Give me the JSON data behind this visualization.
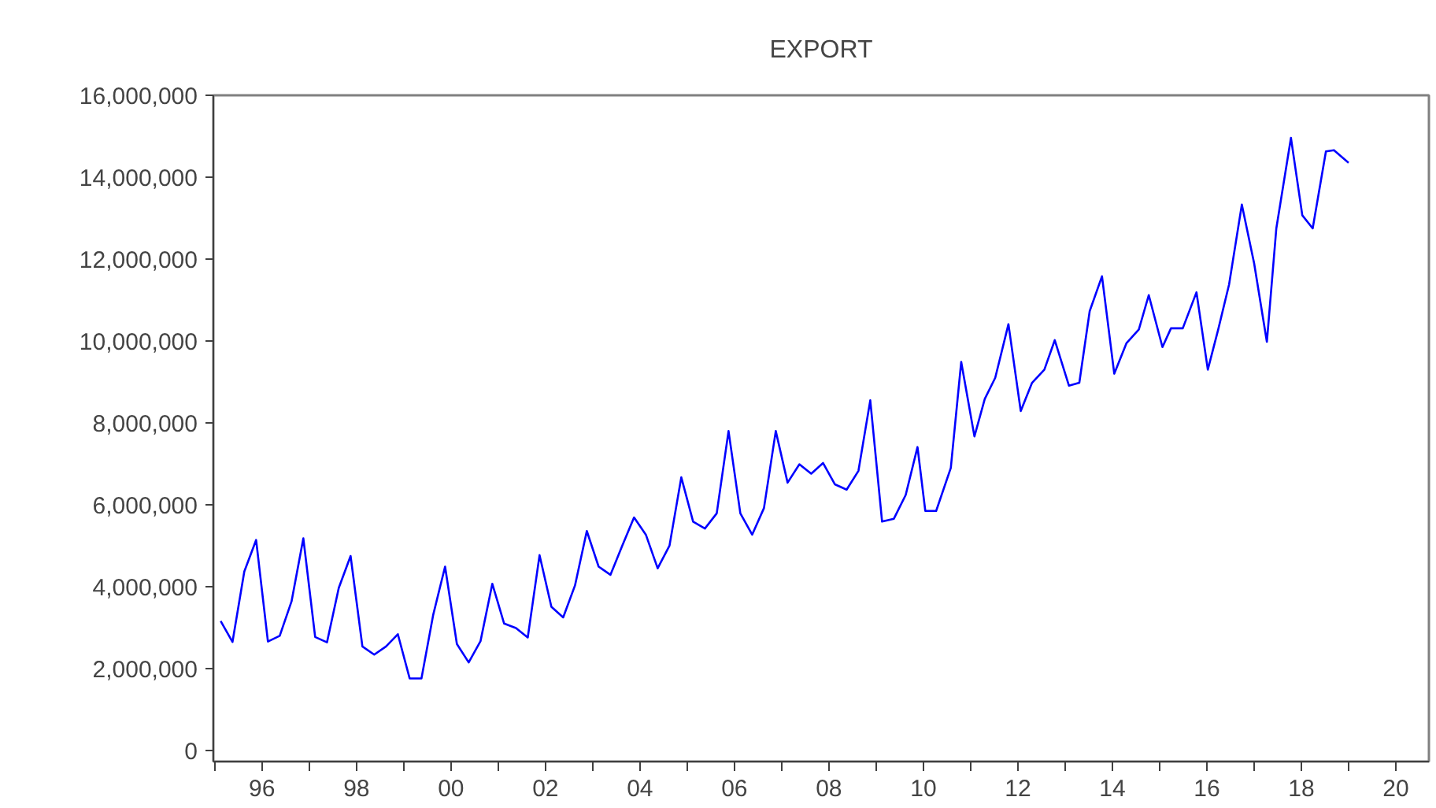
{
  "chart_data": {
    "type": "line",
    "title": "EXPORT",
    "x": [
      1995.125,
      1995.375,
      1995.625,
      1995.875,
      1996.125,
      1996.375,
      1996.625,
      1996.875,
      1997.125,
      1997.375,
      1997.625,
      1997.875,
      1998.125,
      1998.375,
      1998.625,
      1998.875,
      1999.125,
      1999.375,
      1999.625,
      1999.875,
      2000.125,
      2000.375,
      2000.625,
      2000.875,
      2001.125,
      2001.375,
      2001.625,
      2001.875,
      2002.125,
      2002.375,
      2002.625,
      2002.875,
      2003.125,
      2003.375,
      2003.625,
      2003.875,
      2004.125,
      2004.375,
      2004.625,
      2004.875,
      2005.125,
      2005.375,
      2005.625,
      2005.875,
      2006.125,
      2006.375,
      2006.625,
      2006.875,
      2007.125,
      2007.375,
      2007.625,
      2007.875,
      2008.125,
      2008.375,
      2008.625,
      2008.875,
      2009.125,
      2009.375,
      2009.625,
      2009.875,
      2010.04,
      2010.27,
      2010.58,
      2010.8,
      2011.08,
      2011.3,
      2011.52,
      2011.8,
      2012.06,
      2012.3,
      2012.56,
      2012.78,
      2013.08,
      2013.3,
      2013.52,
      2013.78,
      2014.04,
      2014.3,
      2014.56,
      2014.77,
      2015.06,
      2015.24,
      2015.49,
      2015.78,
      2016.02,
      2016.24,
      2016.47,
      2016.74,
      2017.0,
      2017.27,
      2017.47,
      2017.78,
      2018.02,
      2018.24,
      2018.52,
      2018.69,
      2019.0
    ],
    "series": [
      {
        "color": "#0000ff",
        "values": [
          3160000,
          2650000,
          4370000,
          5140000,
          2660000,
          2800000,
          3640000,
          5180000,
          2770000,
          2640000,
          3970000,
          4750000,
          2540000,
          2340000,
          2540000,
          2840000,
          1760000,
          1760000,
          3320000,
          4490000,
          2600000,
          2150000,
          2670000,
          4070000,
          3100000,
          2990000,
          2760000,
          4770000,
          3510000,
          3250000,
          4030000,
          5360000,
          4490000,
          4290000,
          5000000,
          5690000,
          5270000,
          4450000,
          5000000,
          6670000,
          5590000,
          5420000,
          5790000,
          7800000,
          5790000,
          5270000,
          5920000,
          7800000,
          6540000,
          6990000,
          6760000,
          7020000,
          6500000,
          6370000,
          6830000,
          8550000,
          5590000,
          5660000,
          6240000,
          7410000,
          5850000,
          5850000,
          6900000,
          9490000,
          7670000,
          8590000,
          9100000,
          10410000,
          8290000,
          8980000,
          9300000,
          10020000,
          8910000,
          8980000,
          10730000,
          11580000,
          9200000,
          9950000,
          10280000,
          11120000,
          9850000,
          10310000,
          10310000,
          11190000,
          9300000,
          10280000,
          11380000,
          13330000,
          11900000,
          9980000,
          12750000,
          14960000,
          13070000,
          12750000,
          14630000,
          14660000,
          14350000
        ]
      }
    ],
    "xlim": [
      1994.97,
      2020.7
    ],
    "ylim": [
      -270000,
      16000000
    ],
    "xticks": [
      {
        "value": 1995,
        "label": null
      },
      {
        "value": 1996,
        "label": "96"
      },
      {
        "value": 1997,
        "label": null
      },
      {
        "value": 1998,
        "label": "98"
      },
      {
        "value": 1999,
        "label": null
      },
      {
        "value": 2000,
        "label": "00"
      },
      {
        "value": 2001,
        "label": null
      },
      {
        "value": 2002,
        "label": "02"
      },
      {
        "value": 2003,
        "label": null
      },
      {
        "value": 2004,
        "label": "04"
      },
      {
        "value": 2005,
        "label": null
      },
      {
        "value": 2006,
        "label": "06"
      },
      {
        "value": 2007,
        "label": null
      },
      {
        "value": 2008,
        "label": "08"
      },
      {
        "value": 2009,
        "label": null
      },
      {
        "value": 2010,
        "label": "10"
      },
      {
        "value": 2011,
        "label": null
      },
      {
        "value": 2012,
        "label": "12"
      },
      {
        "value": 2013,
        "label": null
      },
      {
        "value": 2014,
        "label": "14"
      },
      {
        "value": 2015,
        "label": null
      },
      {
        "value": 2016,
        "label": "16"
      },
      {
        "value": 2017,
        "label": null
      },
      {
        "value": 2018,
        "label": "18"
      },
      {
        "value": 2019,
        "label": null
      },
      {
        "value": 2020,
        "label": "20"
      }
    ],
    "yticks": [
      {
        "value": 0,
        "label": "0"
      },
      {
        "value": 2000000,
        "label": "2,000,000"
      },
      {
        "value": 4000000,
        "label": "4,000,000"
      },
      {
        "value": 6000000,
        "label": "6,000,000"
      },
      {
        "value": 8000000,
        "label": "8,000,000"
      },
      {
        "value": 10000000,
        "label": "10,000,000"
      },
      {
        "value": 12000000,
        "label": "12,000,000"
      },
      {
        "value": 14000000,
        "label": "14,000,000"
      },
      {
        "value": 16000000,
        "label": "16,000,000"
      }
    ],
    "grid": false,
    "marker": "none",
    "line_style": "solid"
  }
}
